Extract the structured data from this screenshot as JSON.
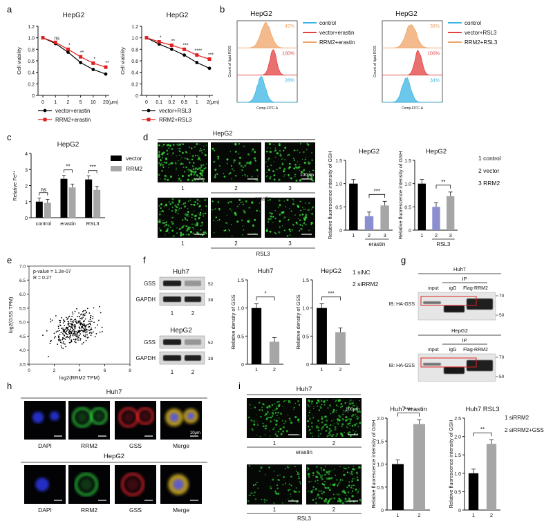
{
  "panel_letters": [
    "a",
    "b",
    "c",
    "d",
    "e",
    "f",
    "g",
    "h",
    "i"
  ],
  "panel_a": {
    "chart_data": [
      {
        "type": "line",
        "title": "HepG2",
        "ylabel": "Cell viability",
        "xlabel": "",
        "x_ticks": [
          "0",
          "1",
          "2",
          "5",
          "10",
          "20(μm)"
        ],
        "ylim": [
          0,
          1.2
        ],
        "y_ticks": [
          "0",
          "0.2",
          "0.4",
          "0.6",
          "0.8",
          "1.0",
          "1.2"
        ],
        "series": [
          {
            "name": "vector+erastin",
            "color": "#000000",
            "marker": "circle",
            "values": [
              1.0,
              0.9,
              0.75,
              0.57,
              0.45,
              0.37
            ]
          },
          {
            "name": "RRM2+erastin",
            "color": "#e0201f",
            "marker": "square",
            "values": [
              1.0,
              0.92,
              0.8,
              0.67,
              0.56,
              0.49
            ]
          }
        ],
        "significance": [
          "",
          "ns",
          "*",
          "**",
          "*",
          "**"
        ]
      },
      {
        "type": "line",
        "title": "HepG2",
        "ylabel": "Cell viability",
        "xlabel": "",
        "x_ticks": [
          "0",
          "0.1",
          "0.2",
          "0.5",
          "1",
          "2(μm)"
        ],
        "ylim": [
          0,
          1.2
        ],
        "y_ticks": [
          "0",
          "0.2",
          "0.4",
          "0.6",
          "0.8",
          "1.0",
          "1.2"
        ],
        "series": [
          {
            "name": "vector+RSL3",
            "color": "#000000",
            "marker": "circle",
            "values": [
              1.0,
              0.89,
              0.8,
              0.7,
              0.57,
              0.47
            ]
          },
          {
            "name": "RRM2+RSL3",
            "color": "#e0201f",
            "marker": "square",
            "values": [
              1.0,
              0.93,
              0.87,
              0.8,
              0.7,
              0.63
            ]
          }
        ],
        "significance": [
          "",
          "*",
          "**",
          "***",
          "****",
          "***"
        ]
      }
    ]
  },
  "panel_b": {
    "plots": [
      {
        "title": "HepG2",
        "ylabel": "Count of lipid ROS",
        "xlabel": "Comp-FITC-A",
        "legend": [
          "control",
          "vector+erastin",
          "RRM2+erastin"
        ],
        "legend_colors": [
          "#39b6e4",
          "#e2403e",
          "#efa467"
        ],
        "percents": [
          "42%",
          "100%",
          "28%"
        ]
      },
      {
        "title": "HepG2",
        "ylabel": "Count of lipid ROS",
        "xlabel": "Comp-FITC-A",
        "legend": [
          "control",
          "vector+RSL3",
          "RRM2+RSL3"
        ],
        "legend_colors": [
          "#39b6e4",
          "#e2403e",
          "#efa467"
        ],
        "percents": [
          "38%",
          "100%",
          "34%"
        ]
      }
    ]
  },
  "panel_c": {
    "chart_data": {
      "type": "bar",
      "title": "HepG2",
      "ylabel": "Relative Fe²⁺",
      "categories": [
        "control",
        "erastin",
        "RSL3"
      ],
      "ylim": [
        0,
        4
      ],
      "y_ticks": [
        "0",
        "1",
        "2",
        "3",
        "4"
      ],
      "series": [
        {
          "name": "vector",
          "color": "#000000",
          "values": [
            1.0,
            2.42,
            2.38
          ]
        },
        {
          "name": "RRM2",
          "color": "#a6a6a6",
          "values": [
            0.92,
            1.88,
            1.73
          ]
        }
      ],
      "significance": [
        "ns",
        "**",
        "***"
      ]
    }
  },
  "panel_d": {
    "title": "HepG2",
    "scale_label": "100μm",
    "row_labels": [
      [
        "1",
        "2",
        "3"
      ],
      [
        "1",
        "2",
        "3"
      ]
    ],
    "treatments": [
      "erastin",
      "RSL3"
    ],
    "legend": [
      "1 control",
      "2 vector",
      "3 RRM2"
    ],
    "chart_data": [
      {
        "type": "bar",
        "title": "HepG2",
        "ylabel": "Relative fluorescence intensity of GSH",
        "categories": [
          "1",
          "2",
          "3"
        ],
        "group_label": "erastin",
        "ylim": [
          0,
          1.5
        ],
        "y_ticks": [
          "0",
          "0.5",
          "1.0",
          "1.5"
        ],
        "values": [
          1.0,
          0.3,
          0.53
        ],
        "colors": [
          "#000000",
          "#8b8fd0",
          "#a6a6a6"
        ],
        "significance": "***"
      },
      {
        "type": "bar",
        "title": "HepG2",
        "ylabel": "Relative fluorescence intensity of GSH",
        "categories": [
          "1",
          "2",
          "3"
        ],
        "group_label": "RSL3",
        "ylim": [
          0,
          1.5
        ],
        "y_ticks": [
          "0",
          "0.5",
          "1.0",
          "1.5"
        ],
        "values": [
          1.0,
          0.5,
          0.73
        ],
        "colors": [
          "#000000",
          "#8b8fd0",
          "#a6a6a6"
        ],
        "significance": "**"
      }
    ]
  },
  "panel_e": {
    "chart_data": {
      "type": "scatter",
      "annotation": [
        "p-value = 1.2e-07",
        "R = 0.27"
      ],
      "xlabel": "log2(RRM2 TPM)",
      "ylabel": "log2(GSS TPM)",
      "xlim": [
        0,
        8
      ],
      "ylim": [
        3.5,
        7.0
      ],
      "x_ticks": [
        "0",
        "2",
        "4",
        "6",
        "8"
      ],
      "y_ticks": [
        "3.5",
        "4.0",
        "4.5",
        "5.0",
        "5.5",
        "6.0",
        "6.5",
        "7.0"
      ]
    }
  },
  "panel_f": {
    "blots": [
      {
        "title": "Huh7",
        "rows": [
          "GSS",
          "GAPDH"
        ],
        "markers": [
          "52",
          "38"
        ],
        "lanes": [
          "1",
          "2"
        ]
      },
      {
        "title": "HepG2",
        "rows": [
          "GSS",
          "GAPDH"
        ],
        "markers": [
          "52",
          "38"
        ],
        "lanes": [
          "1",
          "2"
        ]
      }
    ],
    "legend": [
      "1 siNC",
      "2 siRRM2"
    ],
    "chart_data": [
      {
        "type": "bar",
        "title": "Huh7",
        "ylabel": "Relative density of GSS",
        "categories": [
          "1",
          "2"
        ],
        "ylim": [
          0,
          1.5
        ],
        "y_ticks": [
          "0",
          "0.5",
          "1.0",
          "1.5"
        ],
        "values": [
          1.0,
          0.4
        ],
        "colors": [
          "#000000",
          "#a6a6a6"
        ],
        "significance": "*"
      },
      {
        "type": "bar",
        "title": "HepG2",
        "ylabel": "Relative density of GSS",
        "categories": [
          "1",
          "2"
        ],
        "ylim": [
          0,
          1.5
        ],
        "y_ticks": [
          "0",
          "0.5",
          "1.0",
          "1.5"
        ],
        "values": [
          1.0,
          0.57
        ],
        "colors": [
          "#000000",
          "#a6a6a6"
        ],
        "significance": "***"
      }
    ]
  },
  "panel_g": {
    "blots": [
      {
        "title": "Huh7",
        "ip_label": "IP",
        "lanes": [
          "input",
          "igG",
          "Flag-RRM2"
        ],
        "ib_label": "IB: HA-GSS",
        "markers": [
          "70",
          "50"
        ]
      },
      {
        "title": "HepG2",
        "ip_label": "IP",
        "lanes": [
          "input",
          "igG",
          "Flag-RRM2"
        ],
        "ib_label": "IB: HA-GSS",
        "markers": [
          "70",
          "50"
        ]
      }
    ]
  },
  "panel_h": {
    "rows": [
      {
        "title": "Huh7",
        "labels": [
          "DAPI",
          "RRM2",
          "GSS",
          "Merge"
        ],
        "scale_label": "10μm"
      },
      {
        "title": "HepG2",
        "labels": [
          "DAPI",
          "RRM2",
          "GSS",
          "Merge"
        ]
      }
    ]
  },
  "panel_i": {
    "title": "Huh7",
    "scale_label": "100μm",
    "rows": [
      {
        "labels": [
          "1",
          "2"
        ],
        "treatment": "erastin"
      },
      {
        "labels": [
          "1",
          "2"
        ],
        "treatment": "RSL3"
      }
    ],
    "legend": [
      "1 siRRM2",
      "2 siRRM2+GSS"
    ],
    "chart_data": [
      {
        "type": "bar",
        "title": "Huh7 erastin",
        "ylabel": "Relative fluorescence intensity of GSH",
        "categories": [
          "1",
          "2"
        ],
        "ylim": [
          0,
          2.0
        ],
        "y_ticks": [
          "0",
          "0.5",
          "1.0",
          "1.5",
          "2.0"
        ],
        "values": [
          1.0,
          1.87
        ],
        "colors": [
          "#000000",
          "#a6a6a6"
        ],
        "significance": "****"
      },
      {
        "type": "bar",
        "title": "Huh7 RSL3",
        "ylabel": "Relative fluorescence intensity of GSH",
        "categories": [
          "1",
          "2"
        ],
        "ylim": [
          0,
          2.5
        ],
        "y_ticks": [
          "0",
          "0.5",
          "1.0",
          "1.5",
          "2.0",
          "2.5"
        ],
        "values": [
          1.0,
          1.8
        ],
        "colors": [
          "#000000",
          "#a6a6a6"
        ],
        "significance": "**"
      }
    ]
  }
}
